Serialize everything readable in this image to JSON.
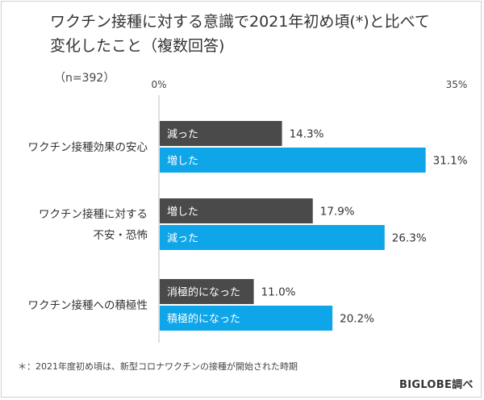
{
  "header": {
    "title": "ワクチン接種に対する意識で2021年初め頃(*)と比べて\n変化したこと（複数回答)",
    "sample": "（n=392）"
  },
  "footnote": "＊：2021年度初め頃は、新型コロナワクチンの接種が開始された時期",
  "source": "BIGLOBE調べ",
  "colors": {
    "dark": "#4a4a4a",
    "blue": "#0ea5e9",
    "axis": "#bfbfbf"
  },
  "chart_data": {
    "type": "bar",
    "orientation": "horizontal",
    "xlim": [
      0,
      35
    ],
    "tick_labels": [
      "0%",
      "35%"
    ],
    "groups": [
      {
        "category": "ワクチン接種効果の安心",
        "bars": [
          {
            "label": "減った",
            "value": 14.3,
            "value_label": "14.3%",
            "color": "dark"
          },
          {
            "label": "増した",
            "value": 31.1,
            "value_label": "31.1%",
            "color": "blue"
          }
        ]
      },
      {
        "category": "ワクチン接種に対する\n不安・恐怖",
        "bars": [
          {
            "label": "増した",
            "value": 17.9,
            "value_label": "17.9%",
            "color": "dark"
          },
          {
            "label": "減った",
            "value": 26.3,
            "value_label": "26.3%",
            "color": "blue"
          }
        ]
      },
      {
        "category": "ワクチン接種への積極性",
        "bars": [
          {
            "label": "消極的になった",
            "value": 11.0,
            "value_label": "11.0%",
            "color": "dark"
          },
          {
            "label": "積極的になった",
            "value": 20.2,
            "value_label": "20.2%",
            "color": "blue"
          }
        ]
      }
    ]
  }
}
